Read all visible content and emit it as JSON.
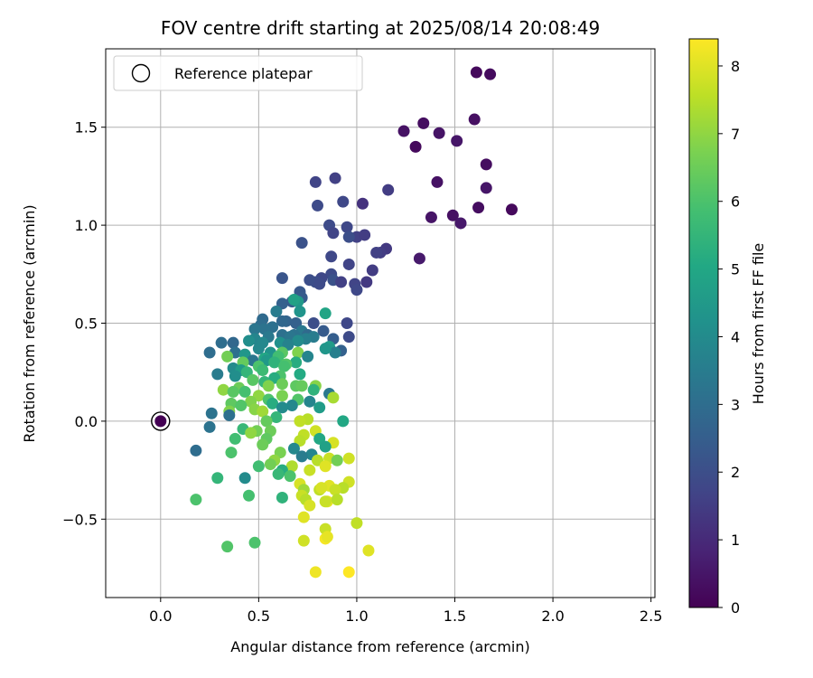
{
  "chart_data": {
    "type": "scatter",
    "title": "FOV centre drift starting at 2025/08/14 20:08:49",
    "xlabel": "Angular distance from reference (arcmin)",
    "ylabel": "Rotation from reference (arcmin)",
    "xlim": [
      -0.28,
      2.52
    ],
    "ylim": [
      -0.9,
      1.9
    ],
    "xticks": [
      "0.0",
      "0.5",
      "1.0",
      "1.5",
      "2.0",
      "2.5"
    ],
    "xtick_values": [
      0,
      0.5,
      1.0,
      1.5,
      2.0,
      2.5
    ],
    "yticks": [
      "−0.5",
      "0.0",
      "0.5",
      "1.0",
      "1.5"
    ],
    "ytick_values": [
      -0.5,
      0,
      0.5,
      1.0,
      1.5
    ],
    "grid": true,
    "legend": {
      "placement": "top-left",
      "entries": [
        "Reference platepar"
      ]
    },
    "colorbar": {
      "label": "Hours from first FF file",
      "colormap": "viridis",
      "range": [
        0,
        8.4
      ],
      "ticks": [
        "0",
        "1",
        "2",
        "3",
        "4",
        "5",
        "6",
        "7",
        "8"
      ],
      "tick_values": [
        0,
        1,
        2,
        3,
        4,
        5,
        6,
        7,
        8
      ]
    },
    "reference_point": {
      "x": 0.0,
      "y": 0.0,
      "c": 0.0
    },
    "points": [
      [
        1.61,
        1.78,
        0.2
      ],
      [
        1.68,
        1.77,
        0.25
      ],
      [
        1.6,
        1.54,
        0.35
      ],
      [
        1.34,
        1.52,
        0.3
      ],
      [
        1.24,
        1.48,
        0.4
      ],
      [
        1.42,
        1.47,
        0.45
      ],
      [
        1.51,
        1.43,
        0.5
      ],
      [
        1.3,
        1.4,
        0.2
      ],
      [
        1.66,
        1.31,
        0.3
      ],
      [
        1.41,
        1.22,
        0.4
      ],
      [
        1.66,
        1.19,
        0.5
      ],
      [
        1.16,
        1.18,
        1.5
      ],
      [
        0.89,
        1.24,
        1.6
      ],
      [
        0.79,
        1.22,
        1.7
      ],
      [
        0.93,
        1.12,
        1.8
      ],
      [
        0.8,
        1.1,
        1.9
      ],
      [
        1.03,
        1.11,
        1.2
      ],
      [
        1.62,
        1.09,
        0.3
      ],
      [
        1.79,
        1.08,
        0.2
      ],
      [
        1.49,
        1.05,
        0.35
      ],
      [
        1.38,
        1.04,
        0.45
      ],
      [
        1.53,
        1.01,
        0.55
      ],
      [
        0.86,
        1.0,
        1.9
      ],
      [
        0.95,
        0.99,
        1.8
      ],
      [
        0.88,
        0.96,
        1.7
      ],
      [
        1.0,
        0.94,
        1.6
      ],
      [
        1.04,
        0.95,
        1.5
      ],
      [
        0.96,
        0.94,
        2.0
      ],
      [
        0.72,
        0.91,
        2.1
      ],
      [
        1.15,
        0.88,
        1.4
      ],
      [
        1.12,
        0.86,
        1.5
      ],
      [
        1.1,
        0.86,
        1.6
      ],
      [
        1.32,
        0.83,
        0.6
      ],
      [
        0.87,
        0.84,
        1.8
      ],
      [
        0.96,
        0.8,
        1.7
      ],
      [
        1.08,
        0.77,
        1.5
      ],
      [
        0.87,
        0.75,
        1.9
      ],
      [
        0.82,
        0.73,
        1.8
      ],
      [
        0.76,
        0.72,
        2.0
      ],
      [
        0.88,
        0.72,
        2.1
      ],
      [
        0.92,
        0.71,
        1.6
      ],
      [
        1.05,
        0.71,
        1.4
      ],
      [
        0.99,
        0.7,
        1.7
      ],
      [
        1.0,
        0.67,
        1.8
      ],
      [
        0.79,
        0.71,
        2.0
      ],
      [
        0.62,
        0.73,
        2.2
      ],
      [
        0.81,
        0.7,
        1.9
      ],
      [
        0.71,
        0.66,
        2.3
      ],
      [
        0.72,
        0.63,
        2.4
      ],
      [
        0.62,
        0.6,
        2.6
      ],
      [
        0.67,
        0.61,
        2.5
      ],
      [
        0.7,
        0.61,
        4.5
      ],
      [
        0.68,
        0.62,
        4.8
      ],
      [
        0.59,
        0.56,
        3.5
      ],
      [
        0.71,
        0.56,
        4.3
      ],
      [
        0.84,
        0.55,
        4.9
      ],
      [
        0.64,
        0.51,
        2.7
      ],
      [
        0.62,
        0.51,
        2.8
      ],
      [
        0.69,
        0.5,
        2.6
      ],
      [
        0.52,
        0.52,
        2.9
      ],
      [
        0.51,
        0.49,
        3.0
      ],
      [
        0.78,
        0.5,
        2.0
      ],
      [
        0.95,
        0.5,
        1.8
      ],
      [
        0.57,
        0.48,
        3.1
      ],
      [
        0.53,
        0.47,
        3.2
      ],
      [
        0.48,
        0.47,
        3.3
      ],
      [
        0.83,
        0.46,
        2.4
      ],
      [
        0.72,
        0.46,
        3.4
      ],
      [
        0.75,
        0.44,
        2.9
      ],
      [
        0.62,
        0.44,
        3.1
      ],
      [
        0.68,
        0.44,
        3.2
      ],
      [
        0.66,
        0.43,
        3.3
      ],
      [
        0.78,
        0.43,
        3.5
      ],
      [
        0.55,
        0.43,
        3.4
      ],
      [
        0.96,
        0.43,
        1.9
      ],
      [
        0.74,
        0.42,
        3.6
      ],
      [
        0.88,
        0.42,
        2.5
      ],
      [
        0.48,
        0.42,
        3.8
      ],
      [
        0.7,
        0.41,
        4.0
      ],
      [
        0.45,
        0.41,
        4.1
      ],
      [
        0.31,
        0.4,
        3.0
      ],
      [
        0.61,
        0.4,
        4.2
      ],
      [
        0.37,
        0.4,
        2.8
      ],
      [
        0.52,
        0.4,
        3.9
      ],
      [
        0.86,
        0.38,
        4.6
      ],
      [
        0.65,
        0.39,
        3.7
      ],
      [
        0.92,
        0.36,
        2.6
      ],
      [
        0.89,
        0.35,
        3.6
      ],
      [
        0.84,
        0.37,
        4.4
      ],
      [
        0.5,
        0.37,
        3.9
      ],
      [
        0.62,
        0.35,
        6.2
      ],
      [
        0.7,
        0.35,
        6.8
      ],
      [
        0.25,
        0.35,
        3.0
      ],
      [
        0.38,
        0.35,
        3.1
      ],
      [
        0.56,
        0.35,
        4.3
      ],
      [
        0.43,
        0.34,
        4.4
      ],
      [
        0.6,
        0.33,
        5.8
      ],
      [
        0.75,
        0.33,
        3.8
      ],
      [
        0.34,
        0.33,
        6.6
      ],
      [
        0.53,
        0.32,
        5.0
      ],
      [
        0.47,
        0.31,
        3.3
      ],
      [
        0.54,
        0.31,
        4.5
      ],
      [
        0.69,
        0.3,
        5.2
      ],
      [
        0.58,
        0.3,
        5.4
      ],
      [
        0.42,
        0.3,
        6.4
      ],
      [
        0.64,
        0.29,
        6.1
      ],
      [
        0.63,
        0.28,
        5.9
      ],
      [
        0.5,
        0.28,
        6.0
      ],
      [
        0.37,
        0.27,
        4.0
      ],
      [
        0.41,
        0.26,
        4.6
      ],
      [
        0.52,
        0.26,
        5.7
      ],
      [
        0.44,
        0.25,
        5.5
      ],
      [
        0.71,
        0.24,
        5.1
      ],
      [
        0.61,
        0.23,
        6.0
      ],
      [
        0.29,
        0.24,
        3.5
      ],
      [
        0.38,
        0.23,
        4.1
      ],
      [
        0.58,
        0.22,
        5.2
      ],
      [
        0.47,
        0.21,
        6.2
      ],
      [
        0.53,
        0.2,
        5.5
      ],
      [
        0.62,
        0.19,
        6.5
      ],
      [
        0.69,
        0.18,
        6.3
      ],
      [
        0.55,
        0.18,
        6.8
      ],
      [
        0.79,
        0.18,
        6.9
      ],
      [
        0.72,
        0.18,
        6.4
      ],
      [
        0.4,
        0.17,
        6.5
      ],
      [
        0.78,
        0.16,
        5.4
      ],
      [
        0.32,
        0.16,
        7.0
      ],
      [
        0.37,
        0.15,
        6.2
      ],
      [
        0.43,
        0.15,
        5.9
      ],
      [
        0.62,
        0.13,
        6.7
      ],
      [
        0.5,
        0.13,
        7.0
      ],
      [
        0.86,
        0.14,
        3.4
      ],
      [
        0.88,
        0.12,
        7.3
      ],
      [
        0.7,
        0.11,
        6.1
      ],
      [
        0.55,
        0.11,
        6.0
      ],
      [
        0.76,
        0.1,
        3.8
      ],
      [
        0.46,
        0.1,
        6.8
      ],
      [
        0.36,
        0.09,
        6.3
      ],
      [
        0.57,
        0.09,
        5.2
      ],
      [
        0.41,
        0.08,
        6.1
      ],
      [
        0.67,
        0.08,
        3.9
      ],
      [
        0.62,
        0.07,
        4.0
      ],
      [
        0.81,
        0.07,
        4.6
      ],
      [
        0.48,
        0.06,
        6.9
      ],
      [
        0.35,
        0.05,
        6.8
      ],
      [
        0.52,
        0.05,
        7.2
      ],
      [
        0.26,
        0.04,
        3.2
      ],
      [
        0.35,
        0.03,
        3.1
      ],
      [
        0.59,
        0.02,
        5.5
      ],
      [
        0.75,
        0.01,
        7.5
      ],
      [
        0.71,
        0.0,
        7.6
      ],
      [
        0.93,
        0.0,
        5.0
      ],
      [
        0.54,
        0.0,
        6.4
      ],
      [
        0.25,
        -0.03,
        3.2
      ],
      [
        0.42,
        -0.04,
        5.6
      ],
      [
        0.49,
        -0.05,
        6.6
      ],
      [
        0.46,
        -0.06,
        7.0
      ],
      [
        0.56,
        -0.05,
        6.5
      ],
      [
        0.79,
        -0.05,
        7.8
      ],
      [
        0.73,
        -0.07,
        7.6
      ],
      [
        0.38,
        -0.09,
        5.8
      ],
      [
        0.54,
        -0.09,
        6.3
      ],
      [
        0.81,
        -0.09,
        5.0
      ],
      [
        0.71,
        -0.1,
        7.5
      ],
      [
        0.88,
        -0.11,
        7.9
      ],
      [
        0.84,
        -0.13,
        4.8
      ],
      [
        0.68,
        -0.14,
        3.9
      ],
      [
        0.52,
        -0.12,
        6.5
      ],
      [
        0.18,
        -0.15,
        3.0
      ],
      [
        0.61,
        -0.16,
        6.7
      ],
      [
        0.36,
        -0.16,
        6.0
      ],
      [
        0.77,
        -0.17,
        3.8
      ],
      [
        0.72,
        -0.18,
        3.5
      ],
      [
        0.96,
        -0.19,
        7.8
      ],
      [
        0.86,
        -0.19,
        7.7
      ],
      [
        0.8,
        -0.2,
        7.5
      ],
      [
        0.9,
        -0.2,
        6.6
      ],
      [
        0.58,
        -0.2,
        7.0
      ],
      [
        0.56,
        -0.22,
        6.6
      ],
      [
        0.5,
        -0.23,
        5.8
      ],
      [
        0.67,
        -0.23,
        7.4
      ],
      [
        0.84,
        -0.23,
        8.0
      ],
      [
        0.76,
        -0.25,
        7.7
      ],
      [
        0.62,
        -0.25,
        5.2
      ],
      [
        0.6,
        -0.27,
        5.6
      ],
      [
        0.66,
        -0.28,
        6.0
      ],
      [
        0.43,
        -0.29,
        4.0
      ],
      [
        0.29,
        -0.29,
        5.5
      ],
      [
        0.96,
        -0.31,
        7.8
      ],
      [
        0.71,
        -0.32,
        7.9
      ],
      [
        0.86,
        -0.33,
        8.0
      ],
      [
        0.93,
        -0.34,
        7.5
      ],
      [
        0.73,
        -0.35,
        7.2
      ],
      [
        0.89,
        -0.35,
        7.7
      ],
      [
        0.81,
        -0.35,
        7.6
      ],
      [
        0.82,
        -0.34,
        7.9
      ],
      [
        0.45,
        -0.38,
        5.9
      ],
      [
        0.72,
        -0.38,
        7.7
      ],
      [
        0.62,
        -0.39,
        5.4
      ],
      [
        0.74,
        -0.4,
        7.5
      ],
      [
        0.18,
        -0.4,
        6.0
      ],
      [
        0.85,
        -0.41,
        8.1
      ],
      [
        0.84,
        -0.41,
        7.7
      ],
      [
        0.9,
        -0.4,
        7.5
      ],
      [
        0.76,
        -0.43,
        7.9
      ],
      [
        0.73,
        -0.49,
        8.0
      ],
      [
        1.0,
        -0.52,
        7.6
      ],
      [
        0.84,
        -0.55,
        7.7
      ],
      [
        0.73,
        -0.61,
        7.8
      ],
      [
        0.48,
        -0.62,
        6.0
      ],
      [
        0.84,
        -0.6,
        8.3
      ],
      [
        0.85,
        -0.59,
        8.1
      ],
      [
        0.34,
        -0.64,
        6.1
      ],
      [
        1.06,
        -0.66,
        8.0
      ],
      [
        0.79,
        -0.77,
        8.2
      ],
      [
        0.96,
        -0.77,
        8.4
      ]
    ]
  }
}
